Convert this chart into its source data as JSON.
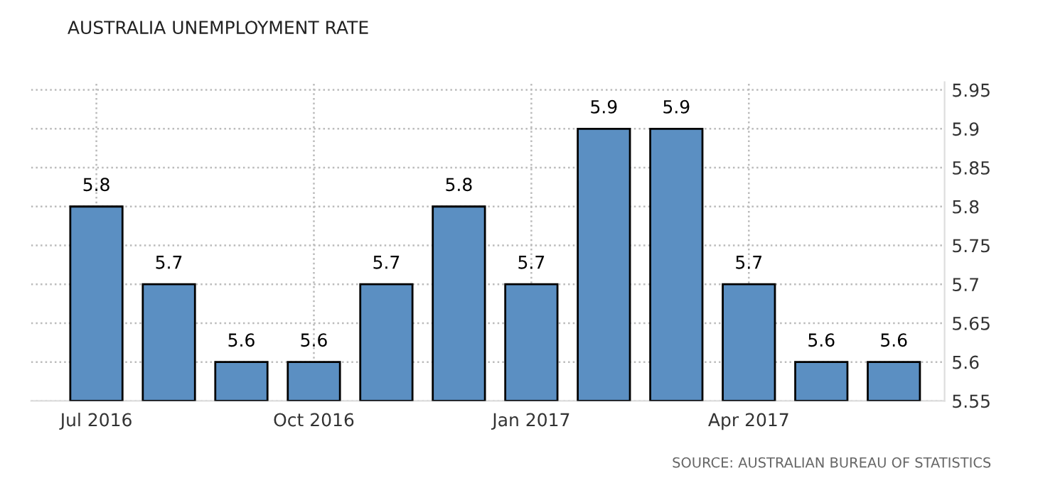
{
  "chart_data": {
    "type": "bar",
    "title": "AUSTRALIA UNEMPLOYMENT RATE",
    "categories": [
      "Jul 2016",
      null,
      null,
      "Oct 2016",
      null,
      null,
      "Jan 2017",
      null,
      null,
      "Apr 2017",
      null,
      null
    ],
    "values": [
      5.8,
      5.7,
      5.6,
      5.6,
      5.7,
      5.8,
      5.7,
      5.9,
      5.9,
      5.7,
      5.6,
      5.6
    ],
    "color": "#5b8fc2",
    "ylim": [
      5.55,
      5.96
    ],
    "yticks": [
      5.55,
      5.6,
      5.65,
      5.7,
      5.75,
      5.8,
      5.85,
      5.9,
      5.95
    ],
    "grid": true,
    "data_labels": true,
    "annotations": [
      "SOURCE: AUSTRALIAN BUREAU OF STATISTICS"
    ]
  }
}
